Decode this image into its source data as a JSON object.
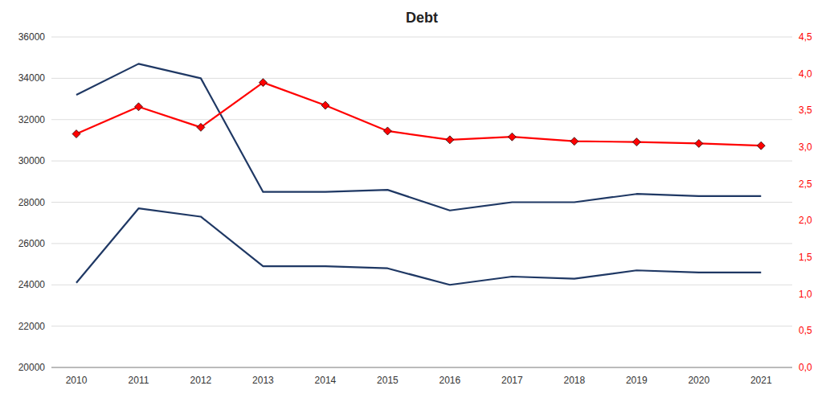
{
  "chart_data": {
    "type": "line",
    "title": "Debt",
    "x": [
      2010,
      2011,
      2012,
      2013,
      2014,
      2015,
      2016,
      2017,
      2018,
      2019,
      2020,
      2021
    ],
    "xlim": [
      2009.6,
      2021.5
    ],
    "xticks": [
      2010,
      2011,
      2012,
      2013,
      2014,
      2015,
      2016,
      2017,
      2018,
      2019,
      2020,
      2021
    ],
    "ylim": [
      20000,
      36000
    ],
    "yticks": [
      20000,
      22000,
      24000,
      26000,
      28000,
      30000,
      32000,
      34000,
      36000
    ],
    "y2lim": [
      0.0,
      4.5
    ],
    "y2ticks": [
      {
        "value": 0.0,
        "label": "0,0"
      },
      {
        "value": 0.5,
        "label": "0,5"
      },
      {
        "value": 1.0,
        "label": "1,0"
      },
      {
        "value": 1.5,
        "label": "1,5"
      },
      {
        "value": 2.0,
        "label": "2,0"
      },
      {
        "value": 2.5,
        "label": "2,5"
      },
      {
        "value": 3.0,
        "label": "3,0"
      },
      {
        "value": 3.5,
        "label": "3,5"
      },
      {
        "value": 4.0,
        "label": "4,0"
      },
      {
        "value": 4.5,
        "label": "4,5"
      }
    ],
    "grid": true,
    "series": [
      {
        "color": "#1F3864",
        "values": [
          33200,
          34700,
          34000,
          28500,
          28500,
          28600,
          27600,
          28000,
          28000,
          28400,
          28300,
          28300
        ]
      },
      {
        "color": "#1F3864",
        "values": [
          24100,
          27700,
          27300,
          24900,
          24900,
          24800,
          24000,
          24400,
          24300,
          24700,
          24600,
          24600
        ]
      },
      {
        "color": "#FF0000",
        "values": [
          3.18,
          3.55,
          3.27,
          3.88,
          3.57,
          3.22,
          3.1,
          3.14,
          3.08,
          3.07,
          3.05,
          3.02
        ],
        "axis": "y2",
        "marker": "diamond"
      }
    ]
  }
}
